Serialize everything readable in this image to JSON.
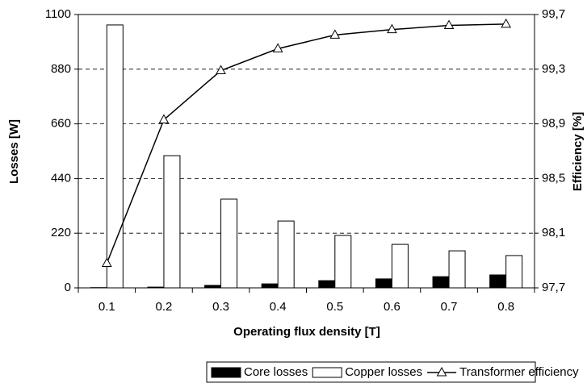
{
  "chart_data": {
    "type": "bar",
    "xlabel": "Operating flux density [T]",
    "ylabel": "Losses [W]",
    "y2label": "Efficiency [%]",
    "categories": [
      "0.1",
      "0.2",
      "0.3",
      "0.4",
      "0.5",
      "0.6",
      "0.7",
      "0.8"
    ],
    "series": [
      {
        "name": "Core losses",
        "type": "bar",
        "color": "#000000",
        "values": [
          1,
          3,
          10,
          16,
          29,
          36,
          45,
          52
        ]
      },
      {
        "name": "Copper losses",
        "type": "bar",
        "color": "#ffffff",
        "values": [
          1058,
          532,
          357,
          269,
          211,
          175,
          149,
          130
        ]
      },
      {
        "name": "Transformer efficiency",
        "type": "line",
        "axis": "y2",
        "color": "#000000",
        "values": [
          97.88,
          98.93,
          99.29,
          99.45,
          99.55,
          99.59,
          99.62,
          99.63
        ]
      }
    ],
    "ylim": [
      0,
      1100
    ],
    "yticks": [
      0,
      220,
      440,
      660,
      880,
      1100
    ],
    "y2lim": [
      97.7,
      99.7
    ],
    "y2ticks": [
      {
        "value": 97.7,
        "label": "97,7"
      },
      {
        "value": 98.1,
        "label": "98,1"
      },
      {
        "value": 98.5,
        "label": "98,5"
      },
      {
        "value": 98.9,
        "label": "98,9"
      },
      {
        "value": 99.3,
        "label": "99,3"
      },
      {
        "value": 99.7,
        "label": "99,7"
      }
    ],
    "grid": true,
    "legend": "bottom"
  }
}
